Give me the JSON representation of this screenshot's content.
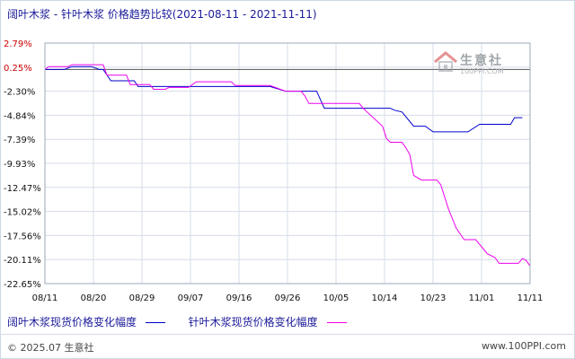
{
  "title": "阔叶木浆 - 针叶木浆 价格趋势比较(2021-08-11 - 2021-11-11)",
  "chart_data": {
    "type": "line",
    "title": "阔叶木浆 - 针叶木浆 价格趋势比较(2021-08-11 - 2021-11-11)",
    "xlabel": "",
    "ylabel": "",
    "x_tick_labels": [
      "08/11",
      "08/20",
      "08/29",
      "09/07",
      "09/16",
      "09/26",
      "10/05",
      "10/14",
      "10/23",
      "11/01",
      "11/11"
    ],
    "y_tick_labels": [
      "2.79%",
      "0.25%",
      "-2.30%",
      "-4.84%",
      "-7.39%",
      "-9.93%",
      "-12.47%",
      "-15.02%",
      "-17.56%",
      "-20.11%",
      "-22.65%"
    ],
    "y_tick_values": [
      2.79,
      0.25,
      -2.3,
      -4.84,
      -7.39,
      -9.93,
      -12.47,
      -15.02,
      -17.56,
      -20.11,
      -22.65
    ],
    "ylim": [
      -22.65,
      2.79
    ],
    "grid": true,
    "legend_position": "bottom",
    "series": [
      {
        "name": "阔叶木浆现货价格变化幅度",
        "color": "#0000cc",
        "points": [
          [
            0,
            0
          ],
          [
            5,
            0
          ],
          [
            7,
            0.3
          ],
          [
            12,
            0.3
          ],
          [
            14,
            0
          ],
          [
            15,
            0
          ],
          [
            17,
            -1.2
          ],
          [
            23,
            -1.2
          ],
          [
            24,
            -1.8
          ],
          [
            58,
            -1.8
          ],
          [
            62,
            -2.3
          ],
          [
            70,
            -2.3
          ],
          [
            72,
            -4.1
          ],
          [
            89,
            -4.1
          ],
          [
            90,
            -4.3
          ],
          [
            92,
            -4.5
          ],
          [
            95,
            -6.0
          ],
          [
            98,
            -6.0
          ],
          [
            100,
            -6.6
          ],
          [
            109,
            -6.6
          ],
          [
            112,
            -5.8
          ],
          [
            120,
            -5.8
          ],
          [
            121,
            -5.1
          ],
          [
            123,
            -5.1
          ]
        ]
      },
      {
        "name": "针叶木浆现货价格变化幅度",
        "color": "#ee00ee",
        "points": [
          [
            0,
            0
          ],
          [
            1,
            0.3
          ],
          [
            6,
            0.3
          ],
          [
            7,
            0.5
          ],
          [
            15,
            0.5
          ],
          [
            16,
            -0.6
          ],
          [
            21,
            -0.6
          ],
          [
            22,
            -1.6
          ],
          [
            27,
            -1.6
          ],
          [
            28,
            -2.1
          ],
          [
            31,
            -2.1
          ],
          [
            32,
            -1.9
          ],
          [
            37,
            -1.9
          ],
          [
            39,
            -1.3
          ],
          [
            48,
            -1.3
          ],
          [
            49,
            -1.7
          ],
          [
            58,
            -1.7
          ],
          [
            62,
            -2.3
          ],
          [
            66,
            -2.3
          ],
          [
            67,
            -2.8
          ],
          [
            68,
            -3.6
          ],
          [
            81,
            -3.6
          ],
          [
            82,
            -4.1
          ],
          [
            83,
            -4.5
          ],
          [
            87,
            -6.0
          ],
          [
            88,
            -7.3
          ],
          [
            89,
            -7.7
          ],
          [
            92,
            -7.7
          ],
          [
            93,
            -8.3
          ],
          [
            94,
            -9.0
          ],
          [
            95,
            -11.2
          ],
          [
            97,
            -11.7
          ],
          [
            101,
            -11.7
          ],
          [
            102,
            -12.2
          ],
          [
            104,
            -14.8
          ],
          [
            106,
            -16.8
          ],
          [
            108,
            -18.0
          ],
          [
            111,
            -18.0
          ],
          [
            112,
            -18.5
          ],
          [
            113,
            -19.0
          ],
          [
            114,
            -19.5
          ],
          [
            116,
            -19.9
          ],
          [
            117,
            -20.5
          ],
          [
            122,
            -20.5
          ],
          [
            123,
            -20.0
          ],
          [
            124,
            -20.2
          ],
          [
            125,
            -20.8
          ]
        ]
      }
    ]
  },
  "legend": {
    "items": [
      {
        "label": "阔叶木浆现货价格变化幅度",
        "color": "#0000cc"
      },
      {
        "label": "针叶木浆现货价格变化幅度",
        "color": "#ee00ee"
      }
    ]
  },
  "footer": {
    "copyright": "© 2025.07 生意社",
    "website": "www.100PPI.com"
  },
  "watermark": {
    "brand": "生意社",
    "url": "100PPI.COM",
    "logo_icon": "house-roof-icon"
  }
}
